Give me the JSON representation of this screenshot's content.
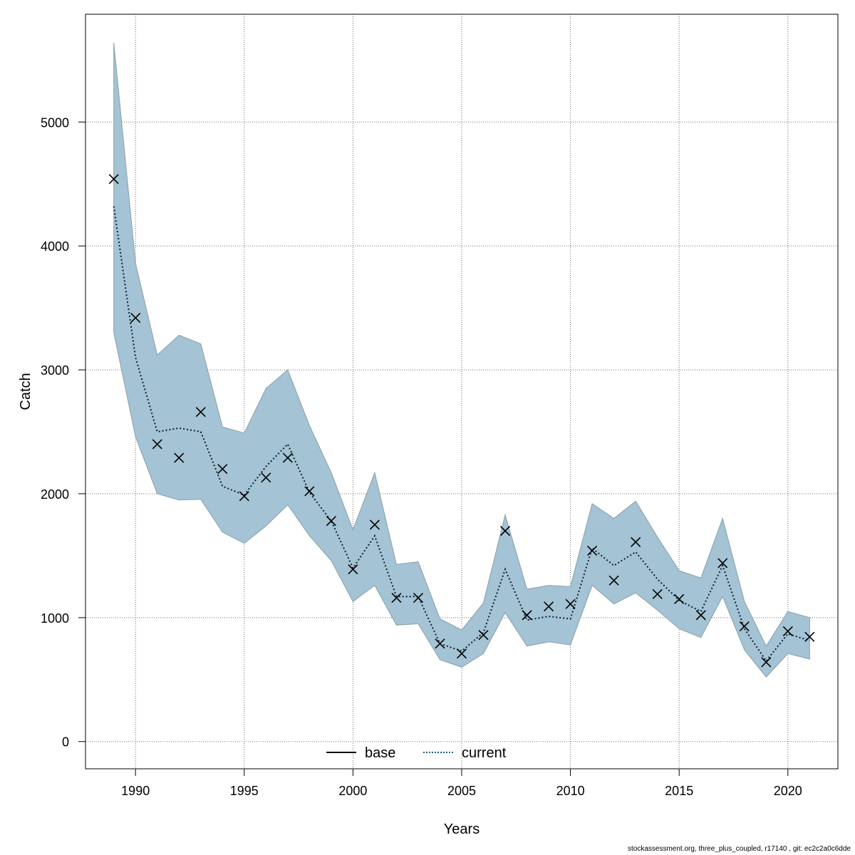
{
  "chart_data": {
    "type": "line",
    "xlabel": "Years",
    "ylabel": "Catch",
    "xlim": [
      1987.7,
      2022.3
    ],
    "ylim": [
      -220,
      5870
    ],
    "x_ticks": [
      1990,
      1995,
      2000,
      2005,
      2010,
      2015,
      2020
    ],
    "y_ticks": [
      0,
      1000,
      2000,
      3000,
      4000,
      5000
    ],
    "grid": true,
    "legend_position": "bottom-center",
    "legend": [
      {
        "name": "base",
        "style": "solid",
        "color": "#000000"
      },
      {
        "name": "current",
        "style": "dotted",
        "color": "#1a5e86"
      }
    ],
    "band_color": "#a4c3d4",
    "band_edge_color": "#8a9fab",
    "x": [
      1989,
      1990,
      1991,
      1992,
      1993,
      1994,
      1995,
      1996,
      1997,
      1998,
      1999,
      2000,
      2001,
      2002,
      2003,
      2004,
      2005,
      2006,
      2007,
      2008,
      2009,
      2010,
      2011,
      2012,
      2013,
      2014,
      2015,
      2016,
      2017,
      2018,
      2019,
      2020,
      2021
    ],
    "band_upper": [
      5640,
      3860,
      3120,
      3280,
      3210,
      2540,
      2490,
      2850,
      3000,
      2550,
      2170,
      1710,
      2170,
      1430,
      1450,
      990,
      900,
      1120,
      1830,
      1230,
      1260,
      1250,
      1920,
      1800,
      1940,
      1650,
      1380,
      1320,
      1800,
      1130,
      770,
      1050,
      1000
    ],
    "band_lower": [
      3300,
      2460,
      2000,
      1950,
      1955,
      1690,
      1600,
      1740,
      1910,
      1660,
      1460,
      1130,
      1260,
      940,
      950,
      660,
      600,
      710,
      1040,
      770,
      805,
      780,
      1260,
      1110,
      1200,
      1060,
      910,
      840,
      1170,
      740,
      520,
      710,
      665
    ],
    "series": [
      {
        "name": "current",
        "values": [
          4320,
          3100,
          2500,
          2530,
          2500,
          2060,
          1990,
          2220,
          2400,
          2010,
          1780,
          1400,
          1660,
          1170,
          1170,
          790,
          730,
          880,
          1390,
          980,
          1010,
          990,
          1560,
          1420,
          1530,
          1310,
          1140,
          1050,
          1420,
          910,
          650,
          870,
          815
        ]
      },
      {
        "name": "observed",
        "values": [
          4540,
          3420,
          2400,
          2290,
          2660,
          2200,
          1980,
          2130,
          2290,
          2020,
          1780,
          1390,
          1750,
          1160,
          1160,
          790,
          710,
          860,
          1700,
          1020,
          1090,
          1110,
          1540,
          1300,
          1610,
          1190,
          1150,
          1020,
          1440,
          930,
          640,
          890,
          845
        ]
      }
    ]
  },
  "footer_text": "stockassessment.org, three_plus_coupled, r17140 , git: ec2c2a0c6dde"
}
